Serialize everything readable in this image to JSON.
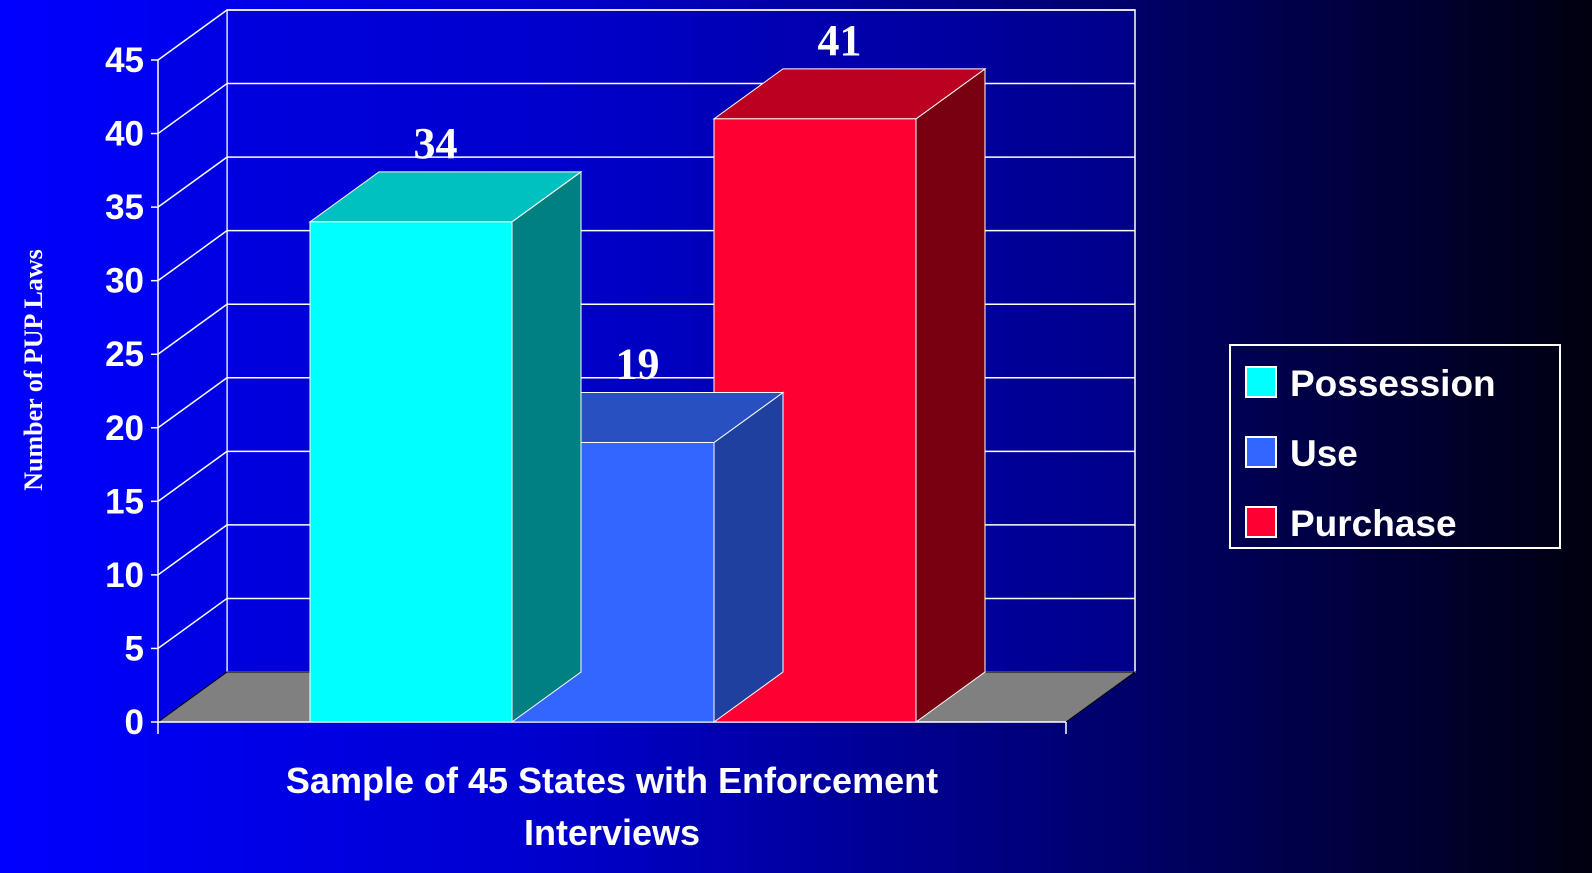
{
  "chart_data": {
    "type": "bar",
    "categories": [
      "Sample of 45 States with Enforcement Interviews"
    ],
    "series": [
      {
        "name": "Possession",
        "values": [
          34
        ],
        "color": "#00ffff",
        "top_color": "#00c0c0",
        "side_color": "#008080"
      },
      {
        "name": "Use",
        "values": [
          19
        ],
        "color": "#3366ff",
        "top_color": "#2850c0",
        "side_color": "#2040a0"
      },
      {
        "name": "Purchase",
        "values": [
          41
        ],
        "color": "#ff0033",
        "top_color": "#bb0022",
        "side_color": "#770011"
      }
    ],
    "title": "",
    "xlabel_lines": [
      "Sample of 45 States with Enforcement",
      "Interviews"
    ],
    "ylabel": "Number  of PUP Laws",
    "ylim": [
      0,
      45
    ],
    "yticks": [
      "0",
      "5",
      "10",
      "15",
      "20",
      "25",
      "30",
      "35",
      "40",
      "45"
    ],
    "data_labels": [
      "34",
      "19",
      "41"
    ],
    "grid": true,
    "legend_position": "right",
    "projection": "3d",
    "wall_color": "#0000cc",
    "floor_color": "#808080"
  }
}
